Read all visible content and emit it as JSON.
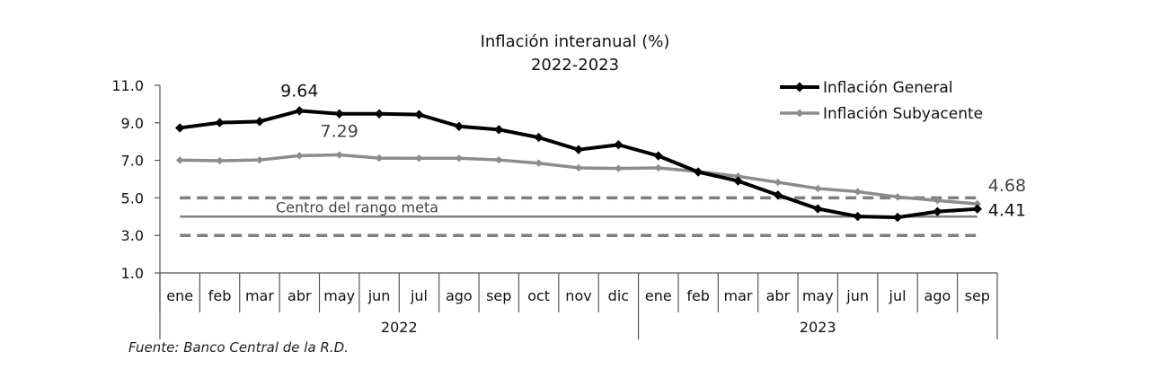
{
  "chart_data": {
    "type": "line",
    "title": "Inflación interanual (%)",
    "subtitle": "2022-2023",
    "categories": [
      "ene",
      "feb",
      "mar",
      "abr",
      "may",
      "jun",
      "jul",
      "ago",
      "sep",
      "oct",
      "nov",
      "dic",
      "ene",
      "feb",
      "mar",
      "abr",
      "may",
      "jun",
      "jul",
      "ago",
      "sep"
    ],
    "year_groups": [
      {
        "label": "2022",
        "count": 12
      },
      {
        "label": "2023",
        "count": 9
      }
    ],
    "ylim": [
      1.0,
      11.0
    ],
    "yticks": [
      "1.0",
      "3.0",
      "5.0",
      "7.0",
      "9.0",
      "11.0"
    ],
    "series": [
      {
        "name": "Inflación General",
        "color": "#000000",
        "values": [
          8.73,
          9.01,
          9.07,
          9.64,
          9.48,
          9.48,
          9.44,
          8.81,
          8.64,
          8.22,
          7.57,
          7.83,
          7.24,
          6.38,
          5.9,
          5.15,
          4.42,
          4.01,
          3.96,
          4.27,
          4.41
        ]
      },
      {
        "name": "Inflación Subyacente",
        "color": "#8c8c8c",
        "values": [
          7.01,
          6.98,
          7.02,
          7.25,
          7.29,
          7.12,
          7.11,
          7.11,
          7.02,
          6.85,
          6.6,
          6.57,
          6.6,
          6.4,
          6.15,
          5.83,
          5.5,
          5.33,
          5.05,
          4.86,
          4.68
        ]
      }
    ],
    "reference_lines": [
      {
        "value": 5.0,
        "style": "dashed",
        "color": "#7f7f7f"
      },
      {
        "value": 4.0,
        "style": "solid",
        "color": "#7f7f7f",
        "label": "Centro del rango meta"
      },
      {
        "value": 3.0,
        "style": "dashed",
        "color": "#7f7f7f"
      }
    ],
    "annotations": [
      {
        "text": "9.64",
        "series": 0,
        "index": 3
      },
      {
        "text": "7.29",
        "series": 1,
        "index": 4
      },
      {
        "text": "4.68",
        "series": 1,
        "index": 20
      },
      {
        "text": "4.41",
        "series": 0,
        "index": 20
      }
    ],
    "legend_position": "top-right",
    "grid": false
  },
  "source": "Fuente: Banco Central de la R.D."
}
